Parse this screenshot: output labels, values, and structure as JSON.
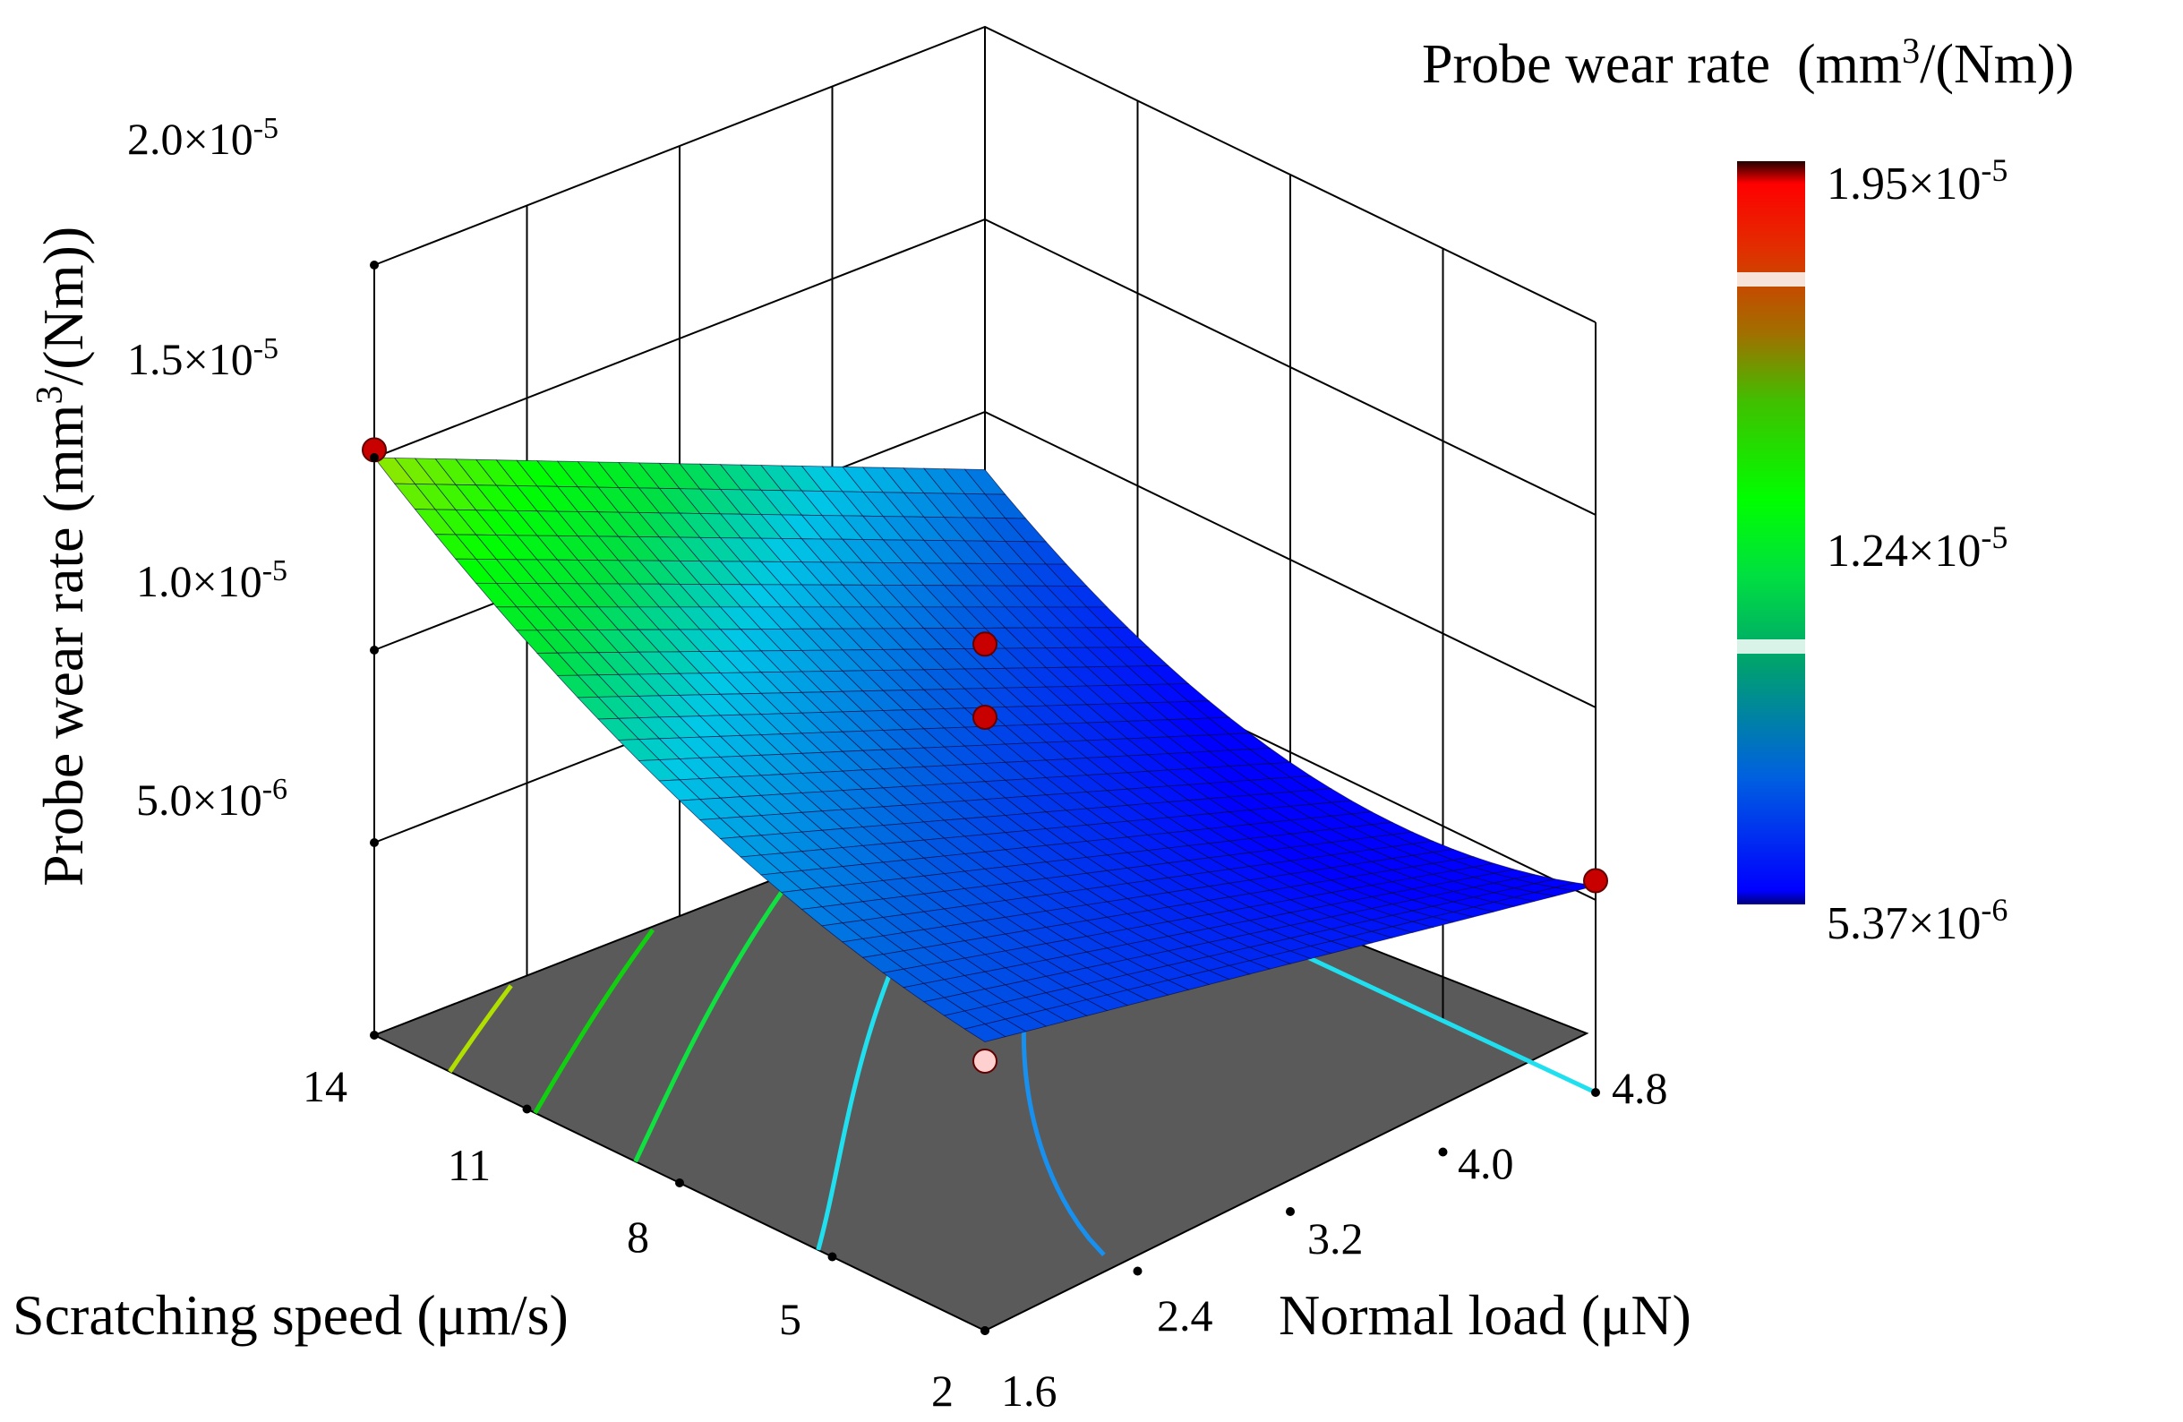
{
  "chart_data": {
    "type": "surface3d",
    "title": "Probe wear rate",
    "colorbar": {
      "title_prefix": "Probe wear rate",
      "title_unit_pre": "(mm",
      "title_unit_sup": "3",
      "title_unit_post": "/(Nm))",
      "max": {
        "mantissa": "1.95",
        "exp": "-5",
        "value": 1.95e-05
      },
      "mid": {
        "mantissa": "1.24",
        "exp": "-5",
        "value": 1.24e-05
      },
      "min": {
        "mantissa": "5.37",
        "exp": "-6",
        "value": 5.37e-06
      },
      "colors": [
        "#0000ff",
        "#0040ff",
        "#00a0c0",
        "#00c060",
        "#00ff00",
        "#40d000",
        "#a08000",
        "#e04000",
        "#ff0000"
      ]
    },
    "x_axis": {
      "label_prefix": "Scratching speed (",
      "label_mu": "μ",
      "label_suffix": "m/s)",
      "ticks": [
        "14",
        "11",
        "8",
        "5",
        "2"
      ],
      "tick_values": [
        14,
        11,
        8,
        5,
        2
      ],
      "range": [
        2,
        14
      ]
    },
    "y_axis": {
      "label_prefix": "Normal load (",
      "label_mu": "μ",
      "label_suffix": "N)",
      "ticks": [
        "1.6",
        "2.4",
        "3.2",
        "4.0",
        "4.8"
      ],
      "tick_values": [
        1.6,
        2.4,
        3.2,
        4.0,
        4.8
      ],
      "range": [
        1.6,
        4.8
      ]
    },
    "z_axis": {
      "label_prefix": "Probe wear rate  (mm",
      "label_sup": "3",
      "label_post": "/(Nm))",
      "ticks": [
        {
          "mantissa": "5.0",
          "exp": "-6",
          "value": 5e-06
        },
        {
          "mantissa": "1.0",
          "exp": "-5",
          "value": 1e-05
        },
        {
          "mantissa": "1.5",
          "exp": "-5",
          "value": 1.5e-05
        },
        {
          "mantissa": "2.0",
          "exp": "-5",
          "value": 2e-05
        }
      ],
      "range": [
        0,
        2e-05
      ]
    },
    "surface_corners": [
      {
        "speed": 14,
        "load": 1.6,
        "wear": 1.5e-05
      },
      {
        "speed": 2,
        "load": 1.6,
        "wear": 7.5e-06
      },
      {
        "speed": 14,
        "load": 4.8,
        "wear": 8.5e-06
      },
      {
        "speed": 2,
        "load": 4.8,
        "wear": 5.37e-06
      }
    ],
    "design_points": [
      {
        "speed": 14,
        "load": 1.6,
        "wear": 1.52e-05,
        "position": "above"
      },
      {
        "speed": 2,
        "load": 1.6,
        "wear": 7e-06,
        "position": "below"
      },
      {
        "speed": 8,
        "load": 3.2,
        "wear": 9e-06,
        "position": "above"
      },
      {
        "speed": 8,
        "load": 3.2,
        "wear": 1.09e-05,
        "position": "above"
      },
      {
        "speed": 2,
        "load": 4.8,
        "wear": 5.5e-06,
        "position": "above"
      }
    ],
    "contours": [
      {
        "level": 1.35e-05,
        "color": "#b0e000"
      },
      {
        "level": 1.2e-05,
        "color": "#10d010"
      },
      {
        "level": 1.05e-05,
        "color": "#10e040"
      },
      {
        "level": 8.5e-06,
        "color": "#20e0f0"
      },
      {
        "level": 7e-06,
        "color": "#1890f0"
      }
    ],
    "floor_color": "#5a5a5a"
  }
}
